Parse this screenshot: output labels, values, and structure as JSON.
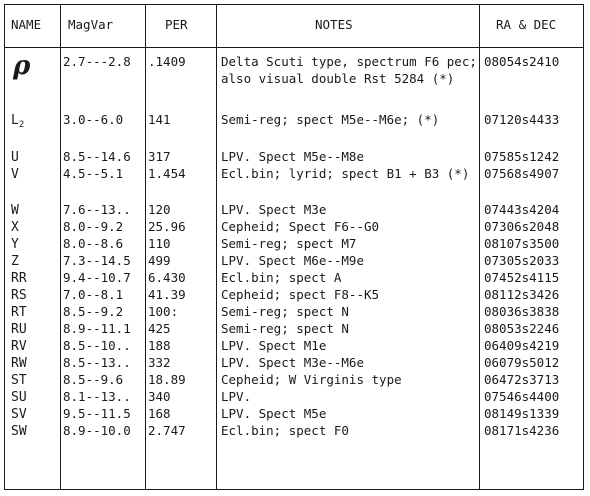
{
  "headers": {
    "name": "NAME",
    "magvar": "MagVar",
    "per": "PER",
    "notes": "NOTES",
    "radec": "RA & DEC"
  },
  "rows": [
    {
      "name": "ρ",
      "mag": "2.7---2.8",
      "per": ".1409",
      "notes": "Delta Scuti type, spectrum F6 pec; also visual double Rst 5284 (*)",
      "radec": "08054s2410"
    },
    {
      "name": "L",
      "name_sub": "2",
      "mag": "3.0--6.0",
      "per": "141",
      "notes": "Semi-reg; spect M5e--M6e; (*)",
      "radec": "07120s4433"
    },
    {
      "name": "U",
      "mag": "8.5--14.6",
      "per": "317",
      "notes": "LPV. Spect M5e--M8e",
      "radec": "07585s1242"
    },
    {
      "name": "V",
      "mag": "4.5--5.1",
      "per": "1.454",
      "notes": "Ecl.bin; lyrid; spect B1 + B3 (*)",
      "radec": "07568s4907"
    },
    {
      "name": "W",
      "mag": "7.6--13..",
      "per": "120",
      "notes": "LPV. Spect M3e",
      "radec": "07443s4204"
    },
    {
      "name": "X",
      "mag": "8.0--9.2",
      "per": "25.96",
      "notes": "Cepheid; Spect F6--G0",
      "radec": "07306s2048"
    },
    {
      "name": "Y",
      "mag": "8.0--8.6",
      "per": "110",
      "notes": "Semi-reg; spect M7",
      "radec": "08107s3500"
    },
    {
      "name": "Z",
      "mag": "7.3--14.5",
      "per": "499",
      "notes": "LPV. Spect M6e--M9e",
      "radec": "07305s2033"
    },
    {
      "name": "RR",
      "mag": "9.4--10.7",
      "per": "6.430",
      "notes": "Ecl.bin; spect A",
      "radec": "07452s4115"
    },
    {
      "name": "RS",
      "mag": "7.0--8.1",
      "per": "41.39",
      "notes": "Cepheid; spect F8--K5",
      "radec": "08112s3426"
    },
    {
      "name": "RT",
      "mag": "8.5--9.2",
      "per": "100:",
      "notes": "Semi-reg; spect N",
      "radec": "08036s3838"
    },
    {
      "name": "RU",
      "mag": "8.9--11.1",
      "per": "425",
      "notes": "Semi-reg; spect N",
      "radec": "08053s2246"
    },
    {
      "name": "RV",
      "mag": "8.5--10..",
      "per": "188",
      "notes": "LPV. Spect M1e",
      "radec": "06409s4219"
    },
    {
      "name": "RW",
      "mag": "8.5--13..",
      "per": "332",
      "notes": "LPV. Spect M3e--M6e",
      "radec": "06079s5012"
    },
    {
      "name": "ST",
      "mag": "8.5--9.6",
      "per": "18.89",
      "notes": "Cepheid; W Virginis type",
      "radec": "06472s3713"
    },
    {
      "name": "SU",
      "mag": "8.1--13..",
      "per": "340",
      "notes": "LPV.",
      "radec": "07546s4400"
    },
    {
      "name": "SV",
      "mag": "9.5--11.5",
      "per": "168",
      "notes": "LPV. Spect M5e",
      "radec": "08149s1339"
    },
    {
      "name": "SW",
      "mag": "8.9--10.0",
      "per": "2.747",
      "notes": "Ecl.bin; spect F0",
      "radec": "08171s4236"
    }
  ]
}
